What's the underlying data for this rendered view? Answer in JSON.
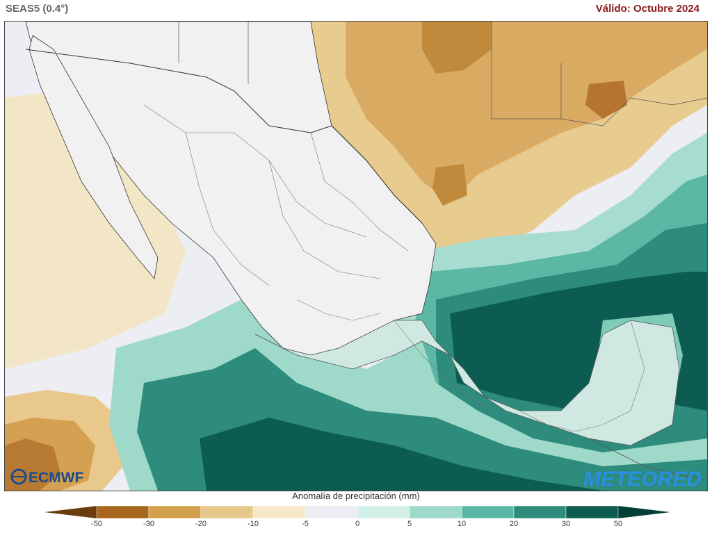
{
  "header": {
    "model_label": "SEAS5 (0.4°)",
    "valid_label": "Válido: Octubre 2024"
  },
  "legend": {
    "title": "Anomalía de precipitación (mm)",
    "ticks": [
      "-50",
      "-30",
      "-20",
      "-10",
      "-5",
      "0",
      "5",
      "10",
      "20",
      "30",
      "50"
    ],
    "colors": [
      "#6b3d0e",
      "#a9661f",
      "#d2a04d",
      "#e6c98a",
      "#f4e8c8",
      "#ecedf4",
      "#d2efe8",
      "#9ed9c9",
      "#5cb8a4",
      "#2d8c7c",
      "#0c5c51",
      "#043f37"
    ]
  },
  "logos": {
    "left": "ECMWF",
    "right": "METEORED"
  },
  "map": {
    "region": "Mexico and surroundings",
    "features": [
      "ocean-anomaly",
      "land-anomaly",
      "country-borders",
      "state-borders",
      "coastlines"
    ]
  }
}
